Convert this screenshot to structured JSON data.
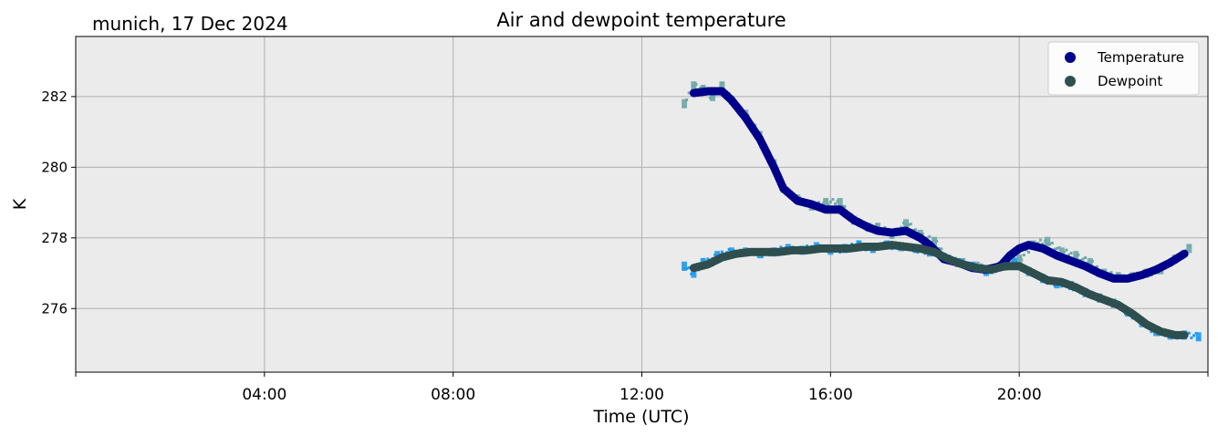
{
  "corner_text": "munich, 17 Dec 2024",
  "chart_data": {
    "type": "scatter",
    "title": "Air and dewpoint temperature",
    "xlabel": "Time (UTC)",
    "ylabel": "K",
    "xlim_hours": [
      0,
      24
    ],
    "ylim": [
      274.2,
      283.7
    ],
    "x_ticks": [
      {
        "hour": 4,
        "label": "04:00"
      },
      {
        "hour": 8,
        "label": "08:00"
      },
      {
        "hour": 12,
        "label": "12:00"
      },
      {
        "hour": 16,
        "label": "16:00"
      },
      {
        "hour": 20,
        "label": "20:00"
      }
    ],
    "y_ticks": [
      {
        "value": 276,
        "label": "276"
      },
      {
        "value": 278,
        "label": "278"
      },
      {
        "value": 280,
        "label": "280"
      },
      {
        "value": 282,
        "label": "282"
      }
    ],
    "grid": true,
    "background": "#ebebeb",
    "legend_position": "top-right",
    "series": [
      {
        "name": "Temperature",
        "style": "smoothed-dots",
        "color": "#00008b",
        "x": [
          13.1,
          13.4,
          13.7,
          13.9,
          14.2,
          14.5,
          14.8,
          15.0,
          15.3,
          15.6,
          15.9,
          16.2,
          16.5,
          16.8,
          17.0,
          17.3,
          17.6,
          17.9,
          18.1,
          18.4,
          18.7,
          19.0,
          19.3,
          19.6,
          19.8,
          20.0,
          20.2,
          20.5,
          20.8,
          21.1,
          21.4,
          21.7,
          22.0,
          22.3,
          22.6,
          22.9,
          23.2,
          23.5
        ],
        "y": [
          282.1,
          282.15,
          282.15,
          281.9,
          281.4,
          280.8,
          280.0,
          279.4,
          279.05,
          278.95,
          278.8,
          278.8,
          278.5,
          278.3,
          278.2,
          278.15,
          278.2,
          278.0,
          277.8,
          277.4,
          277.3,
          277.15,
          277.1,
          277.2,
          277.5,
          277.7,
          277.8,
          277.7,
          277.5,
          277.35,
          277.2,
          277.0,
          276.85,
          276.85,
          276.95,
          277.1,
          277.3,
          277.55
        ]
      },
      {
        "name": "Dewpoint",
        "style": "smoothed-dots",
        "color": "#2f4f4f",
        "x": [
          13.1,
          13.4,
          13.7,
          14.0,
          14.3,
          14.6,
          14.9,
          15.2,
          15.5,
          15.8,
          16.1,
          16.4,
          16.7,
          17.0,
          17.3,
          17.6,
          17.9,
          18.2,
          18.5,
          18.8,
          19.1,
          19.4,
          19.7,
          20.0,
          20.3,
          20.6,
          20.9,
          21.2,
          21.5,
          21.8,
          22.1,
          22.4,
          22.7,
          23.0,
          23.3,
          23.5
        ],
        "y": [
          277.15,
          277.25,
          277.45,
          277.55,
          277.6,
          277.6,
          277.6,
          277.65,
          277.65,
          277.7,
          277.7,
          277.7,
          277.75,
          277.75,
          277.8,
          277.75,
          277.7,
          277.6,
          277.4,
          277.25,
          277.15,
          277.1,
          277.2,
          277.2,
          277.0,
          276.8,
          276.75,
          276.6,
          276.4,
          276.25,
          276.1,
          275.85,
          275.55,
          275.35,
          275.25,
          275.25
        ]
      },
      {
        "name": "",
        "style": "raw-ticks",
        "color": "#6fa8a8",
        "x": [
          12.9,
          13.1,
          13.3,
          13.5,
          13.7,
          13.9,
          14.2,
          14.5,
          14.8,
          15.0,
          15.3,
          15.6,
          15.9,
          16.2,
          16.5,
          16.8,
          17.0,
          17.3,
          17.6,
          17.9,
          18.2,
          18.5,
          18.8,
          19.1,
          19.4,
          19.7,
          20.0,
          20.3,
          20.6,
          20.9,
          21.2,
          21.5,
          21.8,
          22.1,
          22.4,
          22.7,
          23.0,
          23.3,
          23.6
        ],
        "y": [
          281.8,
          282.3,
          282.2,
          282.0,
          282.3,
          281.9,
          281.5,
          280.9,
          280.1,
          279.4,
          279.1,
          278.9,
          279.0,
          279.0,
          278.5,
          278.3,
          278.3,
          278.1,
          278.4,
          278.1,
          277.9,
          277.4,
          277.3,
          277.2,
          277.1,
          277.2,
          277.4,
          277.8,
          277.9,
          277.6,
          277.5,
          277.3,
          277.0,
          276.9,
          276.9,
          277.0,
          277.1,
          277.4,
          277.7
        ]
      },
      {
        "name": "",
        "style": "raw-ticks",
        "color": "#1e9bef",
        "x": [
          12.9,
          13.1,
          13.3,
          13.6,
          13.9,
          14.2,
          14.5,
          14.8,
          15.1,
          15.4,
          15.7,
          16.0,
          16.3,
          16.6,
          16.9,
          17.2,
          17.5,
          17.8,
          18.1,
          18.4,
          18.7,
          19.0,
          19.3,
          19.6,
          19.9,
          20.2,
          20.5,
          20.8,
          21.1,
          21.4,
          21.7,
          22.0,
          22.3,
          22.6,
          22.9,
          23.2,
          23.5,
          23.8
        ],
        "y": [
          277.2,
          277.0,
          277.3,
          277.5,
          277.6,
          277.6,
          277.55,
          277.6,
          277.7,
          277.65,
          277.75,
          277.65,
          277.7,
          277.8,
          277.7,
          277.8,
          277.75,
          277.7,
          277.6,
          277.45,
          277.3,
          277.2,
          277.05,
          277.2,
          277.3,
          277.05,
          276.85,
          276.7,
          276.65,
          276.45,
          276.3,
          276.15,
          275.9,
          275.6,
          275.35,
          275.25,
          275.25,
          275.2
        ]
      }
    ]
  }
}
